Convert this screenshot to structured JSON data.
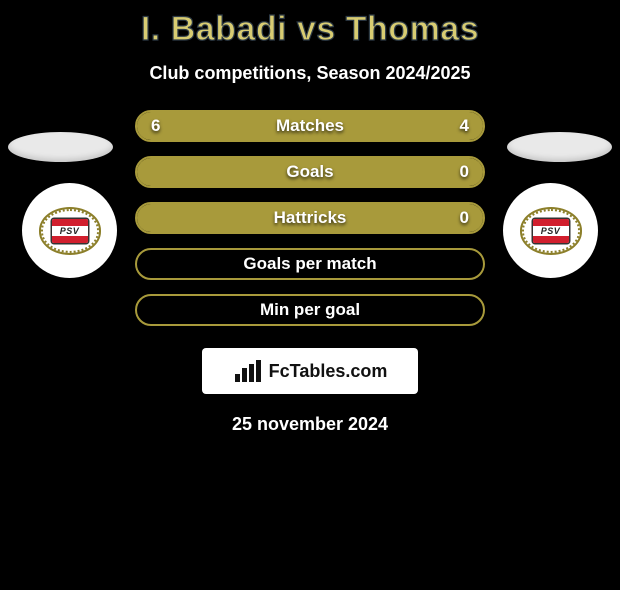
{
  "title": "I. Babadi vs Thomas",
  "subtitle": "Club competitions, Season 2024/2025",
  "colors": {
    "olive": "#a89a3b",
    "background": "#000000",
    "title_fill": "#d8cc72",
    "title_stroke": "#2d3a46",
    "text": "#ffffff"
  },
  "left_player": {
    "club_badge": "psv"
  },
  "right_player": {
    "club_badge": "psv"
  },
  "rows": [
    {
      "label": "Matches",
      "left": "6",
      "right": "4",
      "left_fill_pct": 60,
      "right_fill_pct": 40
    },
    {
      "label": "Goals",
      "left": "",
      "right": "0",
      "left_fill_pct": 100,
      "right_fill_pct": 0
    },
    {
      "label": "Hattricks",
      "left": "",
      "right": "0",
      "left_fill_pct": 100,
      "right_fill_pct": 0
    },
    {
      "label": "Goals per match",
      "left": "",
      "right": "",
      "left_fill_pct": 0,
      "right_fill_pct": 0
    },
    {
      "label": "Min per goal",
      "left": "",
      "right": "",
      "left_fill_pct": 0,
      "right_fill_pct": 0
    }
  ],
  "footer_logo": {
    "text_prefix": "Fc",
    "text_main": "Tables",
    "text_suffix": ".com"
  },
  "date": "25 november 2024"
}
